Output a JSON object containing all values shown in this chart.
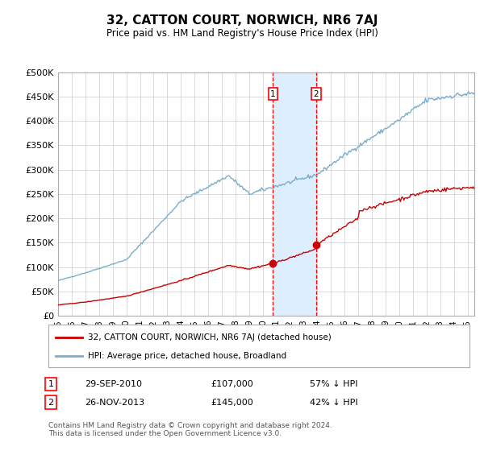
{
  "title": "32, CATTON COURT, NORWICH, NR6 7AJ",
  "subtitle": "Price paid vs. HM Land Registry's House Price Index (HPI)",
  "ylim": [
    0,
    500000
  ],
  "yticks": [
    0,
    50000,
    100000,
    150000,
    200000,
    250000,
    300000,
    350000,
    400000,
    450000,
    500000
  ],
  "xlim_start": 1995.0,
  "xlim_end": 2025.5,
  "transaction1_date": 2010.75,
  "transaction1_price": 107000,
  "transaction1_label": "29-SEP-2010",
  "transaction1_amount": "£107,000",
  "transaction1_pct": "57% ↓ HPI",
  "transaction2_date": 2013.9,
  "transaction2_price": 145000,
  "transaction2_label": "26-NOV-2013",
  "transaction2_amount": "£145,000",
  "transaction2_pct": "42% ↓ HPI",
  "legend_line1": "32, CATTON COURT, NORWICH, NR6 7AJ (detached house)",
  "legend_line2": "HPI: Average price, detached house, Broadland",
  "footnote": "Contains HM Land Registry data © Crown copyright and database right 2024.\nThis data is licensed under the Open Government Licence v3.0.",
  "line_color_red": "#cc0000",
  "line_color_blue": "#7aaecc",
  "shade_color": "#ddeeff",
  "background_color": "#ffffff",
  "grid_color": "#cccccc"
}
